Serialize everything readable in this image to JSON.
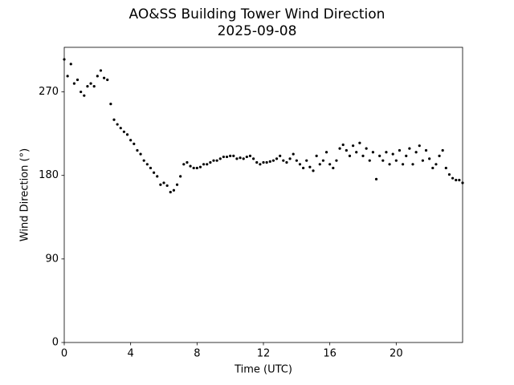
{
  "chart_data": {
    "type": "scatter",
    "title": "AO&SS Building Tower Wind Direction",
    "subtitle": "2025-09-08",
    "x_label": "Time (UTC)",
    "y_label": "Wind Direction (°)",
    "xlim": [
      0,
      24
    ],
    "ylim": [
      0,
      318
    ],
    "xticks": [
      0,
      4,
      8,
      12,
      16,
      20
    ],
    "yticks": [
      0,
      90,
      180,
      270
    ],
    "color": "#000000",
    "x": [
      0,
      0.2,
      0.4,
      0.6,
      0.8,
      1,
      1.2,
      1.4,
      1.6,
      1.8,
      2,
      2.2,
      2.4,
      2.6,
      2.8,
      3,
      3.2,
      3.4,
      3.6,
      3.8,
      4,
      4.2,
      4.4,
      4.6,
      4.8,
      5,
      5.2,
      5.4,
      5.6,
      5.8,
      6,
      6.2,
      6.4,
      6.6,
      6.8,
      7,
      7.2,
      7.4,
      7.6,
      7.8,
      8,
      8.2,
      8.4,
      8.6,
      8.8,
      9,
      9.2,
      9.4,
      9.6,
      9.8,
      10,
      10.2,
      10.4,
      10.6,
      10.8,
      11,
      11.2,
      11.4,
      11.6,
      11.8,
      12,
      12.2,
      12.4,
      12.6,
      12.8,
      13,
      13.2,
      13.4,
      13.6,
      13.8,
      14,
      14.2,
      14.4,
      14.6,
      14.8,
      15,
      15.2,
      15.4,
      15.6,
      15.8,
      16,
      16.2,
      16.4,
      16.6,
      16.8,
      17,
      17.2,
      17.4,
      17.6,
      17.8,
      18,
      18.2,
      18.4,
      18.6,
      18.8,
      19,
      19.2,
      19.4,
      19.6,
      19.8,
      20,
      20.2,
      20.4,
      20.6,
      20.8,
      21,
      21.2,
      21.4,
      21.6,
      21.8,
      22,
      22.2,
      22.4,
      22.6,
      22.8,
      23,
      23.2,
      23.4,
      23.6,
      23.8,
      24
    ],
    "values": [
      305,
      287,
      300,
      279,
      283,
      270,
      266,
      276,
      279,
      276,
      287,
      293,
      285,
      283,
      257,
      240,
      235,
      231,
      227,
      224,
      218,
      214,
      207,
      203,
      196,
      192,
      188,
      183,
      179,
      170,
      172,
      169,
      162,
      164,
      170,
      179,
      192,
      194,
      190,
      188,
      188,
      189,
      192,
      192,
      194,
      196,
      196,
      198,
      200,
      200,
      201,
      201,
      198,
      199,
      198,
      200,
      201,
      198,
      194,
      192,
      194,
      194,
      195,
      196,
      198,
      201,
      196,
      194,
      198,
      203,
      196,
      192,
      188,
      196,
      189,
      185,
      201,
      192,
      196,
      205,
      192,
      188,
      196,
      209,
      213,
      207,
      201,
      212,
      205,
      215,
      201,
      209,
      196,
      205,
      176,
      201,
      196,
      205,
      192,
      203,
      196,
      207,
      192,
      201,
      209,
      192,
      205,
      212,
      196,
      207,
      198,
      188,
      192,
      201,
      207,
      188,
      181,
      177,
      175,
      175,
      172
    ]
  }
}
